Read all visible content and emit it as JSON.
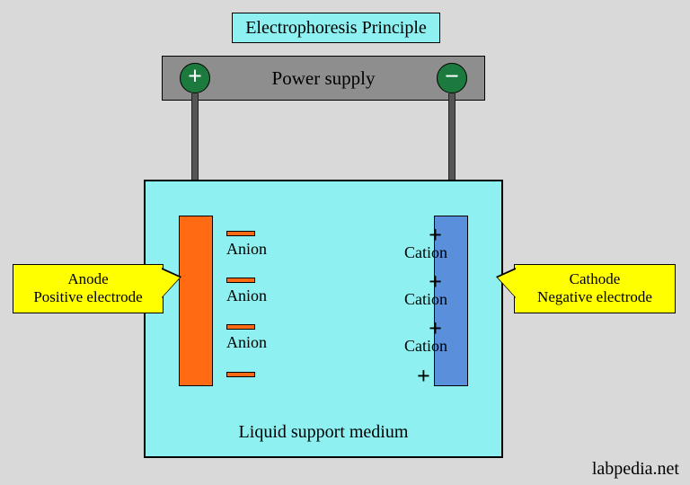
{
  "colors": {
    "background": "#d9d9d9",
    "cyan": "#8ef0f0",
    "gray": "#8e8e8e",
    "green": "#1c7a3f",
    "orange": "#ff6a13",
    "blue": "#5a8fdc",
    "yellow": "#ffff00",
    "wire": "#555555"
  },
  "title": "Electrophoresis Principle",
  "power_supply": {
    "label": "Power supply",
    "plus_symbol": "+",
    "minus_symbol": "−"
  },
  "tank": {
    "medium_label": "Liquid support medium"
  },
  "anode": {
    "callout_line1": "Anode",
    "callout_line2": "Positive electrode",
    "ion_label": "Anion"
  },
  "cathode": {
    "callout_line1": "Cathode",
    "callout_line2": "Negative electrode",
    "ion_label": "Cation",
    "plus_symbol": "+"
  },
  "ion_rows": 3,
  "watermark": "labpedia.net"
}
